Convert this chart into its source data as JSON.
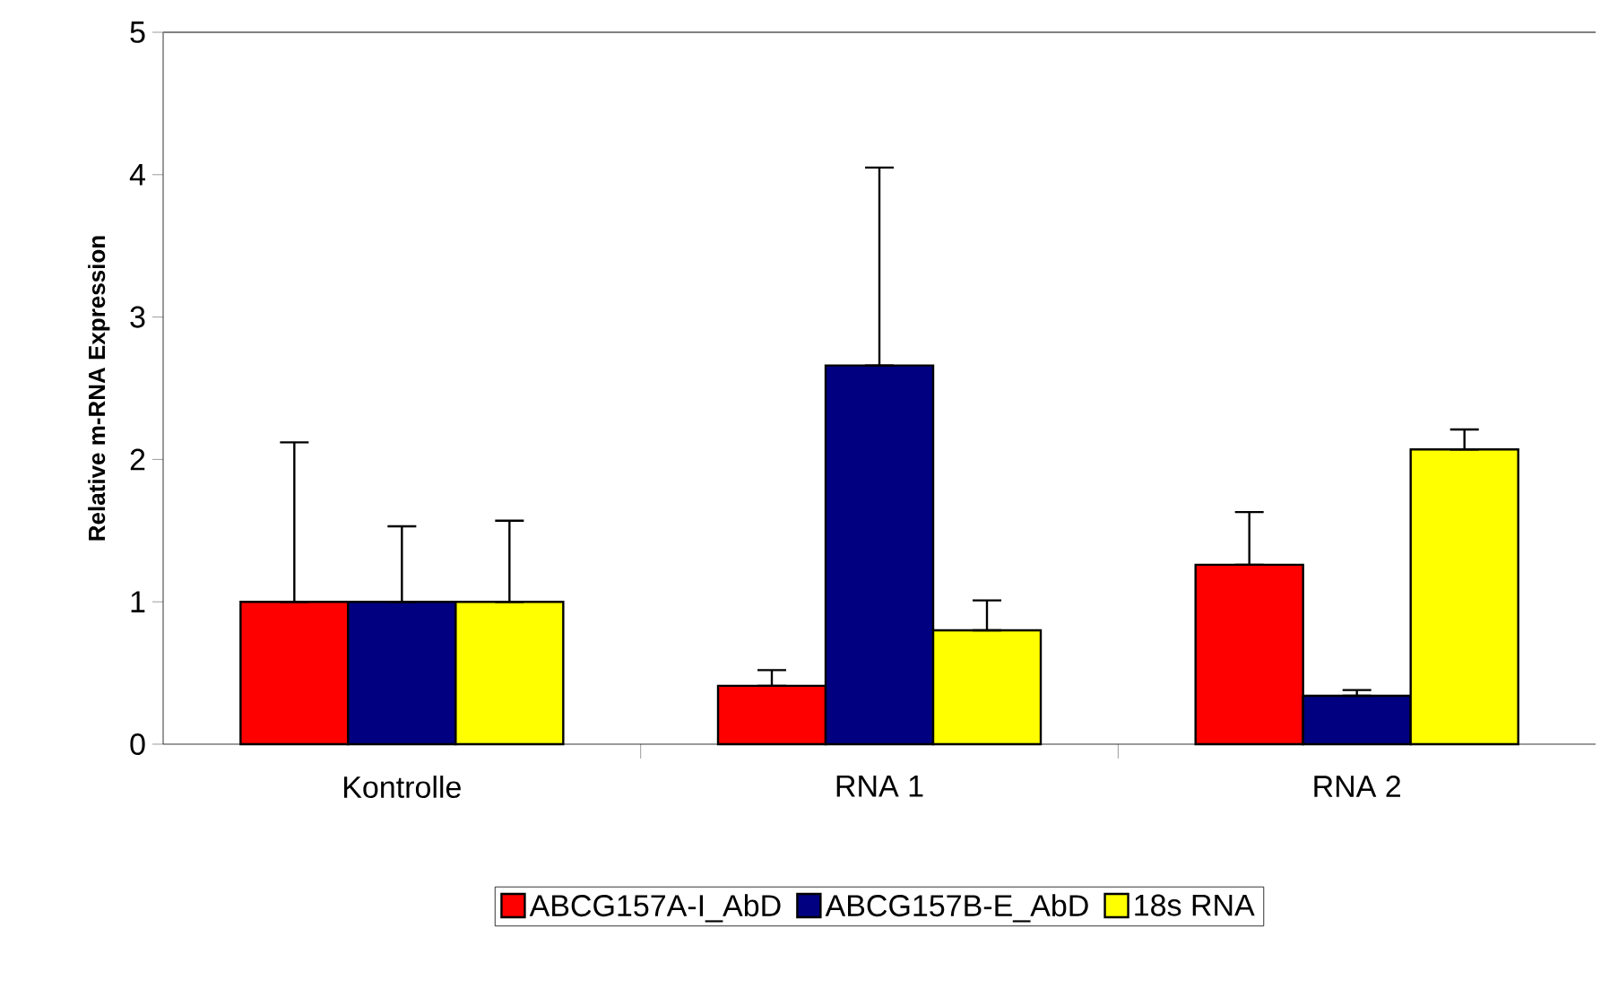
{
  "chart_data": {
    "type": "bar",
    "ylabel": "Relative m-RNA Expression",
    "categories": [
      "Kontrolle",
      "RNA 1",
      "RNA 2"
    ],
    "series": [
      {
        "name": "ABCG157A-I_AbD",
        "color": "#ff0000",
        "values": [
          1.0,
          0.41,
          1.26
        ],
        "errors": [
          [
            1.0,
            2.12
          ],
          [
            0.41,
            0.52
          ],
          [
            1.26,
            1.63
          ]
        ]
      },
      {
        "name": "ABCG157B-E_AbD",
        "color": "#000080",
        "values": [
          1.0,
          2.66,
          0.34
        ],
        "errors": [
          [
            1.0,
            1.53
          ],
          [
            2.66,
            4.05
          ],
          [
            0.34,
            0.38
          ]
        ]
      },
      {
        "name": "18s RNA",
        "color": "#ffff00",
        "values": [
          1.0,
          0.8,
          2.07
        ],
        "errors": [
          [
            1.0,
            1.57
          ],
          [
            0.8,
            1.01
          ],
          [
            2.07,
            2.21
          ]
        ]
      }
    ],
    "ylim": [
      0,
      5
    ],
    "yticks": [
      0,
      1,
      2,
      3,
      4,
      5
    ],
    "grid": false,
    "legend": "bottom"
  }
}
